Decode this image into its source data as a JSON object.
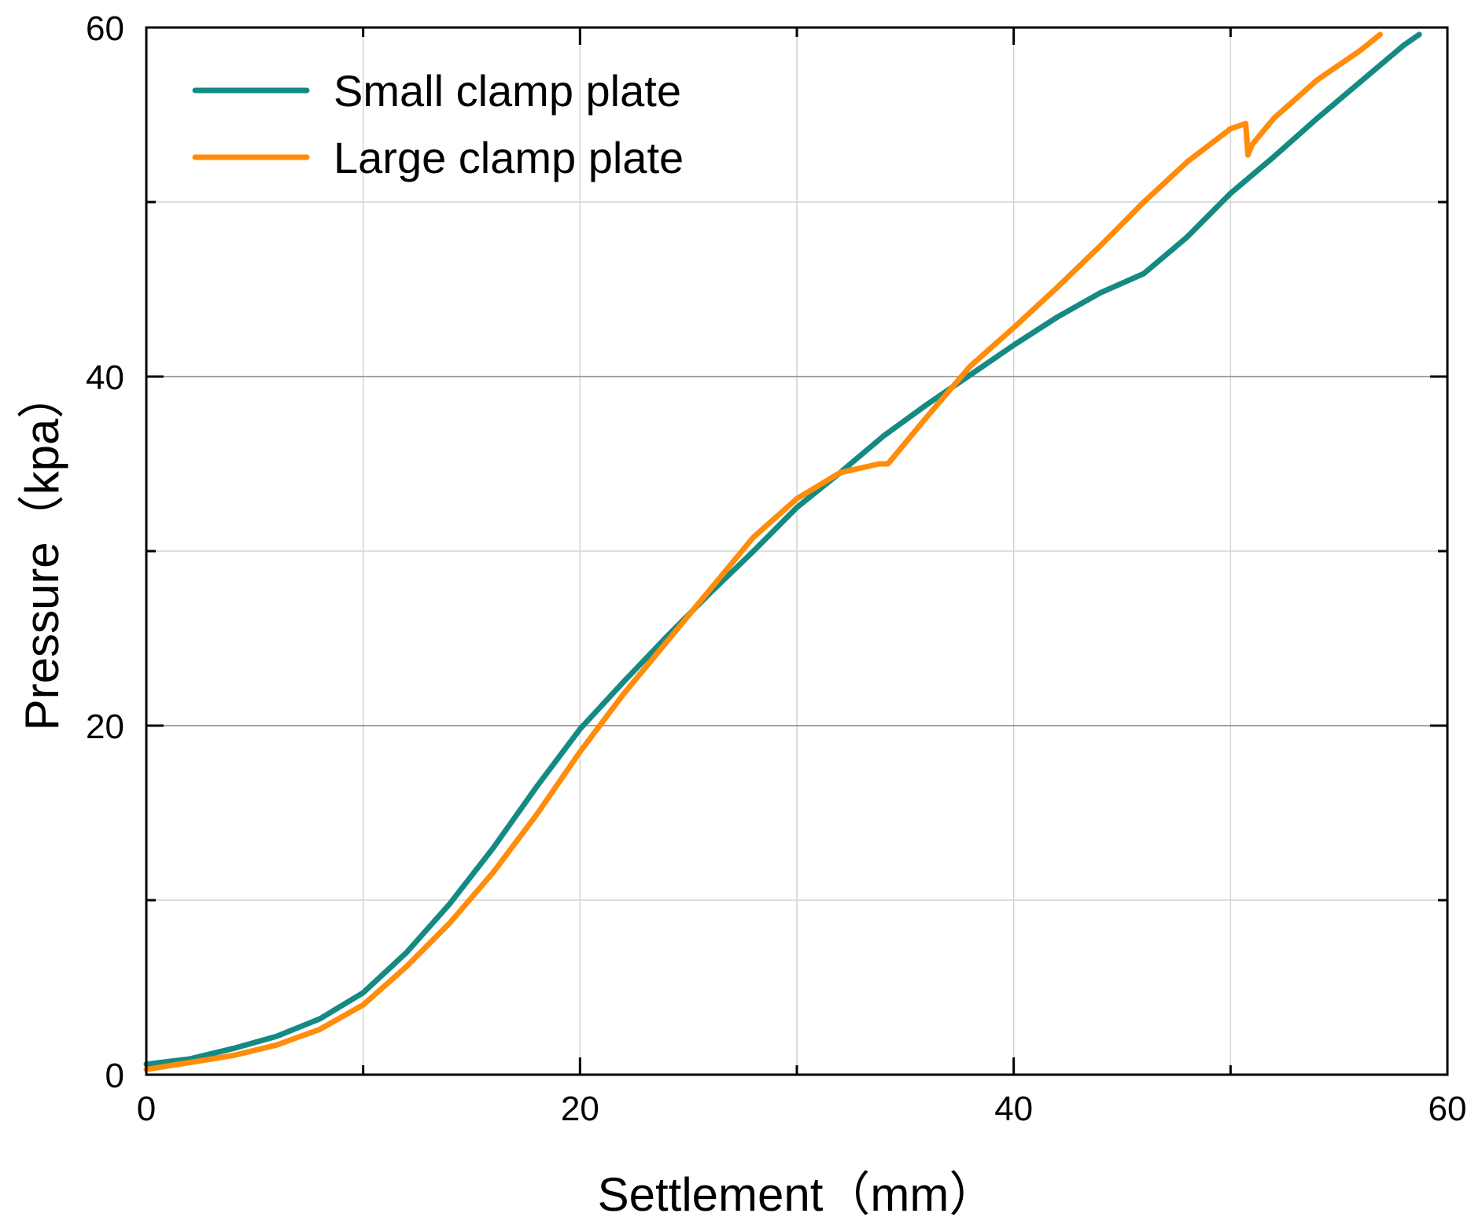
{
  "chart_data": {
    "type": "line",
    "title": "",
    "xlabel": "Settlement（mm）",
    "ylabel": "Pressure（kpa）",
    "xlim": [
      0,
      60
    ],
    "ylim": [
      0,
      60
    ],
    "xticks": [
      0,
      20,
      40,
      60
    ],
    "yticks": [
      0,
      20,
      40,
      60
    ],
    "x_minor_step": 10,
    "y_minor_step": 10,
    "grid": true,
    "legend_position": "top-left",
    "series": [
      {
        "name": "Small clamp plate",
        "color": "#148A83",
        "points": [
          [
            0,
            0.6
          ],
          [
            2,
            0.9
          ],
          [
            4,
            1.5
          ],
          [
            6,
            2.2
          ],
          [
            8,
            3.2
          ],
          [
            10,
            4.7
          ],
          [
            12,
            7.0
          ],
          [
            14,
            9.8
          ],
          [
            16,
            13.0
          ],
          [
            18,
            16.5
          ],
          [
            20,
            19.8
          ],
          [
            22,
            22.5
          ],
          [
            24,
            25.1
          ],
          [
            26,
            27.6
          ],
          [
            28,
            30.0
          ],
          [
            30,
            32.5
          ],
          [
            32,
            34.5
          ],
          [
            34,
            36.6
          ],
          [
            36,
            38.4
          ],
          [
            38,
            40.1
          ],
          [
            40,
            41.8
          ],
          [
            42,
            43.4
          ],
          [
            44,
            44.8
          ],
          [
            46,
            45.9
          ],
          [
            48,
            48.0
          ],
          [
            50,
            50.5
          ],
          [
            52,
            52.6
          ],
          [
            54,
            54.8
          ],
          [
            56,
            56.9
          ],
          [
            58,
            59.0
          ],
          [
            58.7,
            59.6
          ]
        ]
      },
      {
        "name": "Large clamp plate",
        "color": "#FF8C0A",
        "points": [
          [
            0,
            0.3
          ],
          [
            2,
            0.7
          ],
          [
            4,
            1.1
          ],
          [
            6,
            1.7
          ],
          [
            8,
            2.6
          ],
          [
            10,
            4.0
          ],
          [
            12,
            6.2
          ],
          [
            14,
            8.7
          ],
          [
            16,
            11.6
          ],
          [
            18,
            14.9
          ],
          [
            20,
            18.5
          ],
          [
            22,
            21.8
          ],
          [
            24,
            24.8
          ],
          [
            26,
            27.8
          ],
          [
            28,
            30.8
          ],
          [
            30,
            33.0
          ],
          [
            32,
            34.5
          ],
          [
            33.8,
            35.0
          ],
          [
            34.2,
            35.0
          ],
          [
            36,
            37.7
          ],
          [
            38,
            40.6
          ],
          [
            40,
            42.8
          ],
          [
            42,
            45.1
          ],
          [
            44,
            47.5
          ],
          [
            46,
            50.0
          ],
          [
            48,
            52.3
          ],
          [
            50,
            54.2
          ],
          [
            50.7,
            54.5
          ],
          [
            50.8,
            52.7
          ],
          [
            51,
            53.3
          ],
          [
            52,
            54.8
          ],
          [
            54,
            57.0
          ],
          [
            56,
            58.7
          ],
          [
            56.9,
            59.6
          ]
        ]
      }
    ]
  }
}
